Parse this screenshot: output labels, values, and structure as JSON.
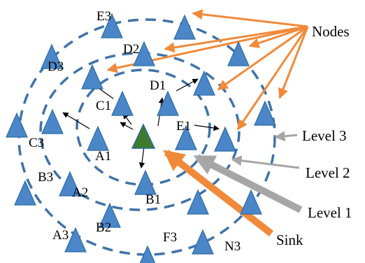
{
  "diagram": {
    "colors": {
      "node_fill": "#4a86c8",
      "node_stroke": "#2e6da4",
      "sink_fill": "#3e7b2c",
      "ring_stroke": "#3f72a8",
      "arrow_orange": "#f08a3a",
      "arrow_gray": "#a6a6a6",
      "arrow_black": "#000000"
    },
    "node_labels": {
      "E3": "E3",
      "D2": "D2",
      "D3": "D3",
      "C1": "C1",
      "D1": "D1",
      "E1": "E1",
      "C3": "C3",
      "A1": "A1",
      "B3": "B3",
      "A2": "A2",
      "B1": "B1",
      "B2": "B2",
      "A3": "A3",
      "F3": "F3",
      "N3": "N3"
    },
    "callouts": {
      "nodes": "Nodes",
      "level3": "Level 3",
      "level2": "Level 2",
      "level1": "Level 1",
      "sink": "Sink"
    }
  }
}
